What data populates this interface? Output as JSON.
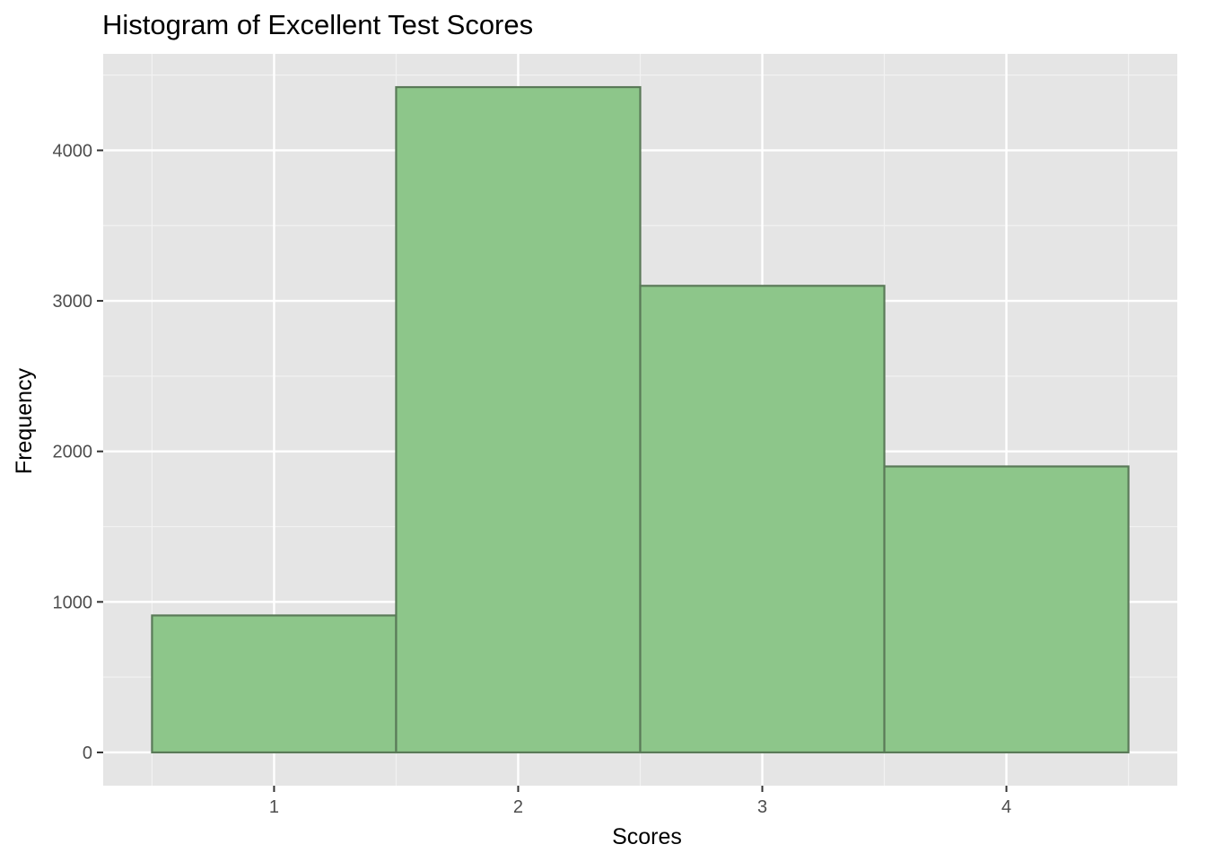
{
  "chart_data": {
    "type": "bar",
    "title": "Histogram of Excellent Test Scores",
    "xlabel": "Scores",
    "ylabel": "Frequency",
    "categories": [
      "1",
      "2",
      "3",
      "4"
    ],
    "x": [
      1,
      2,
      3,
      4
    ],
    "bin_edges": [
      0.5,
      1.5,
      2.5,
      3.5,
      4.5
    ],
    "values": [
      910,
      4420,
      3100,
      1900
    ],
    "xlim": [
      0.3,
      4.7
    ],
    "ylim": [
      -221,
      4641
    ],
    "yticks": [
      0,
      1000,
      2000,
      3000,
      4000
    ],
    "ytick_labels": [
      "0",
      "1000",
      "2000",
      "3000",
      "4000"
    ],
    "xticks": [
      1,
      2,
      3,
      4
    ],
    "xtick_labels": [
      "1",
      "2",
      "3",
      "4"
    ],
    "grid": true,
    "legend": "none",
    "colors": {
      "bar_fill": "#8dc68a",
      "bar_stroke": "#5a7a58",
      "panel_background": "#e5e5e5",
      "grid_major": "#ffffff",
      "grid_minor": "#f2f2f2",
      "tick_label": "#4d4d4d",
      "tick_mark": "#333333"
    }
  }
}
